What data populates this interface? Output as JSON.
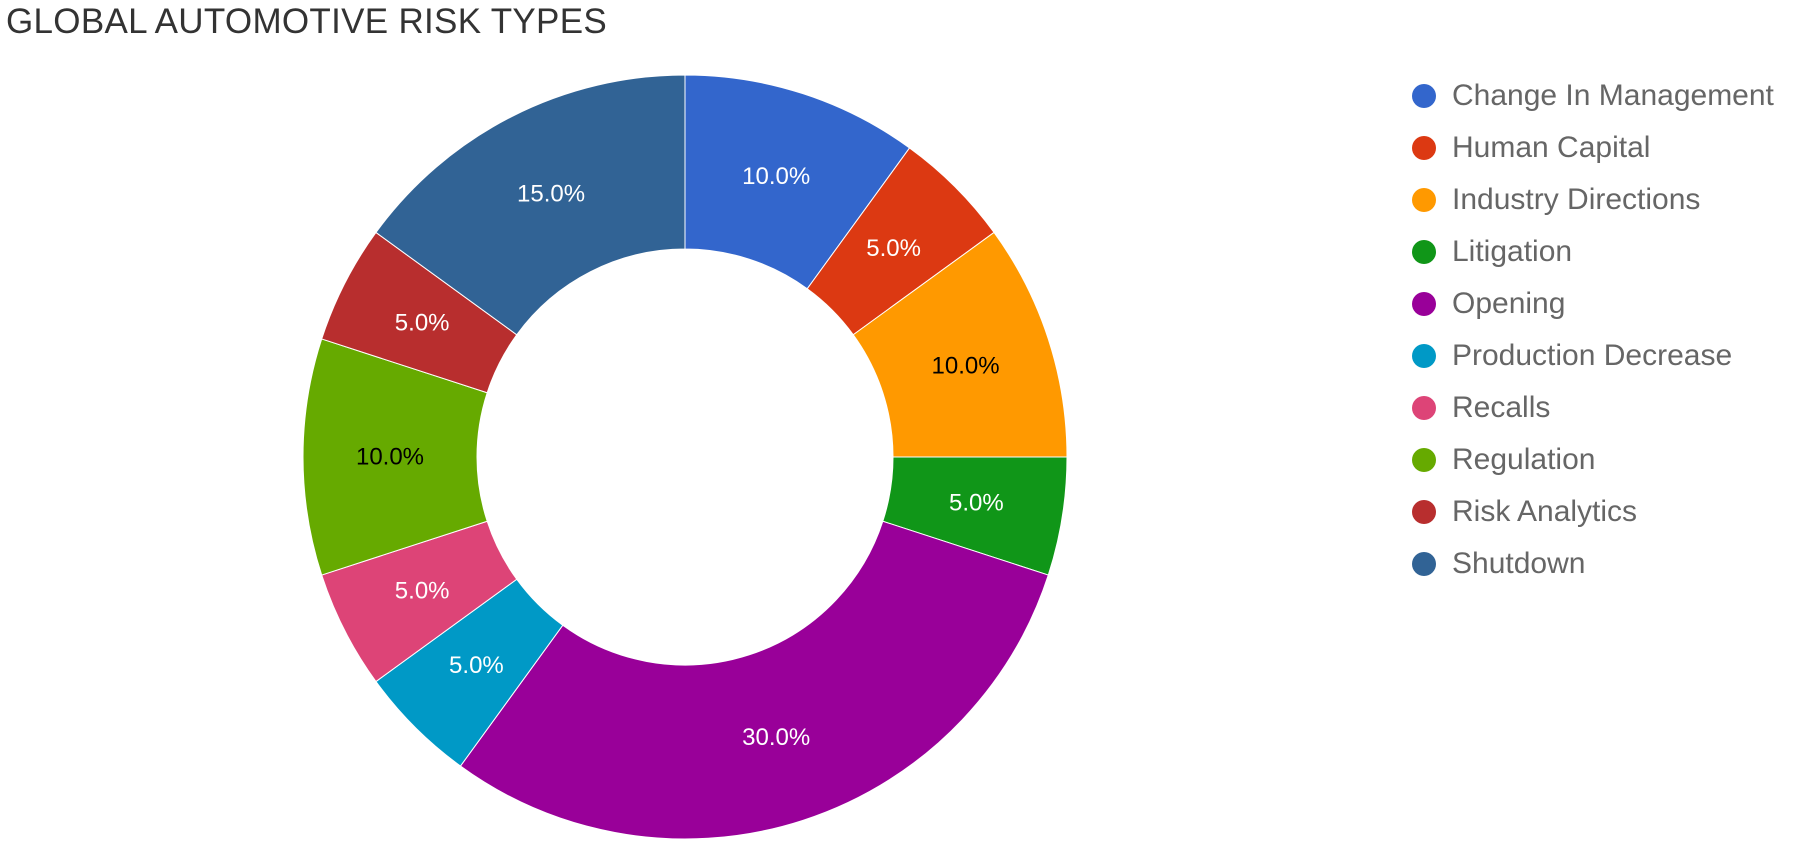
{
  "chart_data": {
    "type": "pie",
    "variant": "donut",
    "title": "GLOBAL AUTOMOTIVE RISK TYPES",
    "legend_position": "right",
    "slices": [
      {
        "label": "Change In Management",
        "value": 10.0,
        "display": "10.0%",
        "color": "#3366cc",
        "label_color": "#ffffff"
      },
      {
        "label": "Human Capital",
        "value": 5.0,
        "display": "5.0%",
        "color": "#dc3912",
        "label_color": "#ffffff"
      },
      {
        "label": "Industry Directions",
        "value": 10.0,
        "display": "10.0%",
        "color": "#ff9900",
        "label_color": "#000000"
      },
      {
        "label": "Litigation",
        "value": 5.0,
        "display": "5.0%",
        "color": "#109618",
        "label_color": "#ffffff"
      },
      {
        "label": "Opening",
        "value": 30.0,
        "display": "30.0%",
        "color": "#990099",
        "label_color": "#ffffff"
      },
      {
        "label": "Production Decrease",
        "value": 5.0,
        "display": "5.0%",
        "color": "#0099c6",
        "label_color": "#ffffff"
      },
      {
        "label": "Recalls",
        "value": 5.0,
        "display": "5.0%",
        "color": "#dd4477",
        "label_color": "#ffffff"
      },
      {
        "label": "Regulation",
        "value": 10.0,
        "display": "10.0%",
        "color": "#66aa00",
        "label_color": "#000000"
      },
      {
        "label": "Risk Analytics",
        "value": 5.0,
        "display": "5.0%",
        "color": "#b82e2e",
        "label_color": "#ffffff"
      },
      {
        "label": "Shutdown",
        "value": 15.0,
        "display": "15.0%",
        "color": "#316395",
        "label_color": "#ffffff"
      }
    ]
  }
}
